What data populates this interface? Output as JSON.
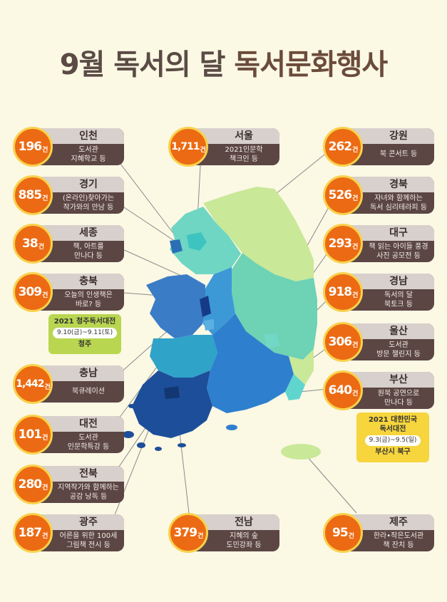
{
  "title": {
    "part1": "9월 독서의 달 ",
    "part2": "독서문화행사"
  },
  "unit": "건",
  "regions": [
    {
      "name": "인천",
      "count": "196",
      "desc1": "도서관",
      "desc2": "지혜학교 등"
    },
    {
      "name": "경기",
      "count": "885",
      "desc1": "(온라인)찾아가는",
      "desc2": "작가와의 만남 등"
    },
    {
      "name": "세종",
      "count": "38",
      "desc1": "책, 아트를",
      "desc2": "만나다 등"
    },
    {
      "name": "충북",
      "count": "309",
      "desc1": "오늘의 인생책은",
      "desc2": "바로? 등"
    },
    {
      "name": "충남",
      "count": "1,442",
      "desc1": "북큐레이션",
      "desc2": ""
    },
    {
      "name": "대전",
      "count": "101",
      "desc1": "도서관",
      "desc2": "인문학특강 등"
    },
    {
      "name": "전북",
      "count": "280",
      "desc1": "지역작가와 함께하는",
      "desc2": "공감 낭독 등"
    },
    {
      "name": "광주",
      "count": "187",
      "desc1": "어른을 위한 100세",
      "desc2": "그림책 전시 등"
    },
    {
      "name": "서울",
      "count": "1,711",
      "desc1": "2021인문학",
      "desc2": "책크인 등"
    },
    {
      "name": "전남",
      "count": "379",
      "desc1": "지혜의 숲",
      "desc2": "도민강좌 등"
    },
    {
      "name": "강원",
      "count": "262",
      "desc1": "북 콘서트 등",
      "desc2": ""
    },
    {
      "name": "경북",
      "count": "526",
      "desc1": "자녀와 함께하는",
      "desc2": "독서 심리테라피 등"
    },
    {
      "name": "대구",
      "count": "293",
      "desc1": "책 읽는 아이들 풍경",
      "desc2": "사진 공모전 등"
    },
    {
      "name": "경남",
      "count": "918",
      "desc1": "독서의 달",
      "desc2": "북토크 등"
    },
    {
      "name": "울산",
      "count": "306",
      "desc1": "도서관",
      "desc2": "방문 챌린지 등"
    },
    {
      "name": "부산",
      "count": "640",
      "desc1": "원북 공연으로",
      "desc2": "만나다 등"
    },
    {
      "name": "제주",
      "count": "95",
      "desc1": "한라•작은도서관",
      "desc2": "책 잔치 등"
    }
  ],
  "festival_cheongju": {
    "title": "2021 청주독서대전",
    "dates": "9.10(금)~9.11(토)",
    "place": "청주"
  },
  "festival_busan": {
    "title1": "2021 대한민국",
    "title2": "독서대전",
    "dates": "9.3(금)~9.5(일)",
    "place": "부산시 북구"
  },
  "colors": {
    "badge": "#ec6a13",
    "badge_ring": "#f8d24c",
    "card": "#5b4644",
    "card_top": "#d7d0cc",
    "cheongju_box": "#b9d650",
    "busan_box": "#f6d53d"
  }
}
